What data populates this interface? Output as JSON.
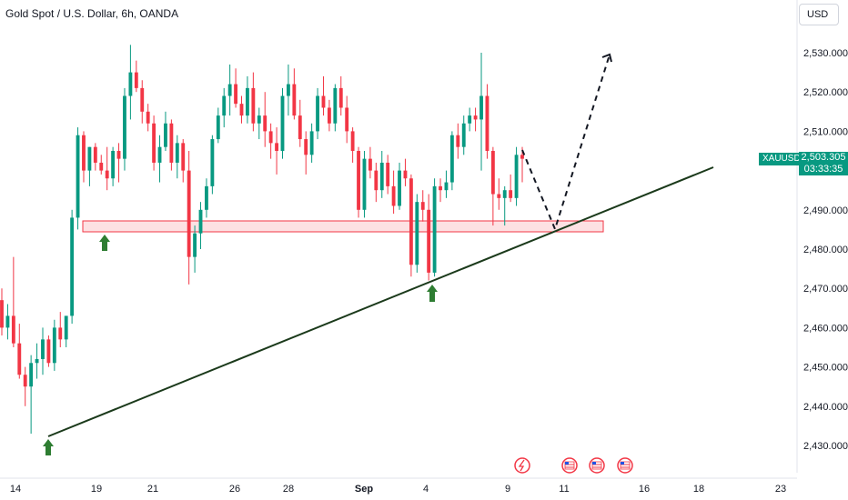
{
  "header": {
    "title": "Gold Spot / U.S. Dollar, 6h, OANDA",
    "currency_button": "USD"
  },
  "price_tag": {
    "symbol": "XAUUSD",
    "price": "2,503.305",
    "countdown": "03:33:35"
  },
  "colors": {
    "up": "#089981",
    "down": "#f23645",
    "support_zone": "#f23645",
    "arrow": "#2e7d32",
    "trend": "#1b3a1b"
  },
  "chart_data": {
    "type": "candlestick",
    "title": "Gold Spot / U.S. Dollar, 6h, OANDA",
    "ylim": [
      2424,
      2538
    ],
    "y_ticks": [
      "2,430.000",
      "2,440.000",
      "2,450.000",
      "2,460.000",
      "2,470.000",
      "2,480.000",
      "2,490.000",
      "2,500.000",
      "2,510.000",
      "2,520.000",
      "2,530.000"
    ],
    "x_ticks": [
      "14",
      "19",
      "21",
      "26",
      "28",
      "Sep",
      "4",
      "9",
      "11",
      "16",
      "18",
      "23"
    ],
    "candles": [
      [
        2467,
        2470,
        2458,
        2460
      ],
      [
        2460,
        2466,
        2457,
        2463
      ],
      [
        2463,
        2478,
        2455,
        2456
      ],
      [
        2456,
        2461,
        2447,
        2448
      ],
      [
        2448,
        2450,
        2440,
        2445
      ],
      [
        2445,
        2453,
        2433,
        2451
      ],
      [
        2451,
        2456,
        2447,
        2452
      ],
      [
        2452,
        2460,
        2448,
        2457
      ],
      [
        2457,
        2458,
        2450,
        2451
      ],
      [
        2451,
        2462,
        2449,
        2460
      ],
      [
        2460,
        2464,
        2455,
        2457
      ],
      [
        2457,
        2463,
        2455,
        2463
      ],
      [
        2463,
        2490,
        2461,
        2488
      ],
      [
        2488,
        2511,
        2485,
        2509
      ],
      [
        2509,
        2510,
        2497,
        2500
      ],
      [
        2500,
        2506,
        2496,
        2506
      ],
      [
        2506,
        2507,
        2500,
        2502
      ],
      [
        2502,
        2504,
        2499,
        2500
      ],
      [
        2500,
        2506,
        2495,
        2498
      ],
      [
        2498,
        2506,
        2496,
        2505
      ],
      [
        2505,
        2507,
        2497,
        2503
      ],
      [
        2503,
        2521,
        2500,
        2519
      ],
      [
        2519,
        2532,
        2513,
        2525
      ],
      [
        2525,
        2528,
        2520,
        2521
      ],
      [
        2521,
        2523,
        2512,
        2515
      ],
      [
        2515,
        2517,
        2510,
        2512
      ],
      [
        2512,
        2514,
        2500,
        2502
      ],
      [
        2502,
        2509,
        2497,
        2506
      ],
      [
        2506,
        2515,
        2505,
        2512
      ],
      [
        2512,
        2513,
        2500,
        2502
      ],
      [
        2502,
        2509,
        2498,
        2507
      ],
      [
        2507,
        2508,
        2497,
        2500
      ],
      [
        2500,
        2505,
        2471,
        2478
      ],
      [
        2478,
        2486,
        2474,
        2484
      ],
      [
        2484,
        2492,
        2480,
        2490
      ],
      [
        2490,
        2498,
        2488,
        2496
      ],
      [
        2496,
        2509,
        2494,
        2508
      ],
      [
        2508,
        2516,
        2507,
        2514
      ],
      [
        2514,
        2521,
        2511,
        2519
      ],
      [
        2519,
        2527,
        2514,
        2522
      ],
      [
        2522,
        2526,
        2516,
        2517
      ],
      [
        2517,
        2519,
        2512,
        2514
      ],
      [
        2514,
        2524,
        2512,
        2521
      ],
      [
        2521,
        2525,
        2510,
        2512
      ],
      [
        2512,
        2516,
        2508,
        2514
      ],
      [
        2514,
        2520,
        2506,
        2510
      ],
      [
        2510,
        2512,
        2503,
        2507
      ],
      [
        2507,
        2511,
        2499,
        2505
      ],
      [
        2505,
        2521,
        2503,
        2519
      ],
      [
        2519,
        2527,
        2514,
        2522
      ],
      [
        2522,
        2526,
        2513,
        2514
      ],
      [
        2514,
        2518,
        2506,
        2508
      ],
      [
        2508,
        2510,
        2499,
        2504
      ],
      [
        2504,
        2512,
        2502,
        2510
      ],
      [
        2510,
        2521,
        2508,
        2519
      ],
      [
        2519,
        2524,
        2514,
        2516
      ],
      [
        2516,
        2518,
        2510,
        2512
      ],
      [
        2512,
        2522,
        2510,
        2521
      ],
      [
        2521,
        2524,
        2514,
        2516
      ],
      [
        2516,
        2519,
        2507,
        2510
      ],
      [
        2510,
        2511,
        2502,
        2505
      ],
      [
        2505,
        2506,
        2488,
        2490
      ],
      [
        2490,
        2505,
        2488,
        2503
      ],
      [
        2503,
        2506,
        2498,
        2500
      ],
      [
        2500,
        2502,
        2492,
        2495
      ],
      [
        2495,
        2505,
        2493,
        2502
      ],
      [
        2502,
        2504,
        2494,
        2496
      ],
      [
        2496,
        2500,
        2489,
        2491
      ],
      [
        2491,
        2502,
        2490,
        2500
      ],
      [
        2500,
        2503,
        2496,
        2498
      ],
      [
        2498,
        2499,
        2473,
        2476
      ],
      [
        2476,
        2494,
        2474,
        2492
      ],
      [
        2492,
        2495,
        2487,
        2490
      ],
      [
        2490,
        2494,
        2472,
        2474
      ],
      [
        2474,
        2498,
        2473,
        2496
      ],
      [
        2496,
        2498,
        2492,
        2495
      ],
      [
        2495,
        2500,
        2493,
        2497
      ],
      [
        2497,
        2510,
        2495,
        2509
      ],
      [
        2509,
        2512,
        2503,
        2506
      ],
      [
        2506,
        2514,
        2504,
        2512
      ],
      [
        2512,
        2516,
        2510,
        2514
      ],
      [
        2514,
        2516,
        2510,
        2513
      ],
      [
        2513,
        2530,
        2500,
        2519
      ],
      [
        2519,
        2522,
        2503,
        2505
      ],
      [
        2505,
        2506,
        2486,
        2494
      ],
      [
        2494,
        2498,
        2490,
        2493
      ],
      [
        2493,
        2496,
        2486,
        2495
      ],
      [
        2495,
        2499,
        2492,
        2493
      ],
      [
        2493,
        2506,
        2491,
        2504
      ],
      [
        2504,
        2506,
        2497,
        2503
      ]
    ]
  }
}
